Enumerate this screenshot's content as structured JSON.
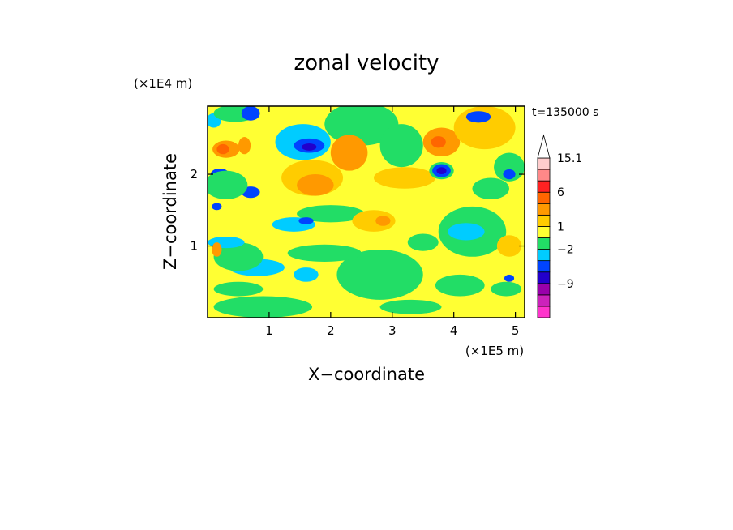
{
  "chart_data": {
    "type": "heatmap",
    "title": "zonal velocity",
    "time_label": "t=135000 s",
    "xlabel": "X−coordinate",
    "ylabel": "Z−coordinate",
    "x_multiplier": "(×1E5 m)",
    "y_multiplier": "(×1E4 m)",
    "xlim": [
      0,
      5.15
    ],
    "ylim": [
      0,
      2.95
    ],
    "x_ticks": [
      {
        "value": 1,
        "label": "1"
      },
      {
        "value": 2,
        "label": "2"
      },
      {
        "value": 3,
        "label": "3"
      },
      {
        "value": 4,
        "label": "4"
      },
      {
        "value": 5,
        "label": "5"
      }
    ],
    "y_ticks": [
      {
        "value": 1,
        "label": "1"
      },
      {
        "value": 2,
        "label": "2"
      }
    ],
    "colorbar": {
      "levels": [
        {
          "label": "",
          "color": "#ff33cc"
        },
        {
          "label": "",
          "color": "#cc22bb"
        },
        {
          "label": "−9",
          "color": "#9900aa"
        },
        {
          "label": "",
          "color": "#2200cc"
        },
        {
          "label": "",
          "color": "#0044ff"
        },
        {
          "label": "−2",
          "color": "#00ccff"
        },
        {
          "label": "",
          "color": "#22dd66"
        },
        {
          "label": "1",
          "color": "#ffff33"
        },
        {
          "label": "",
          "color": "#ffcc00"
        },
        {
          "label": "",
          "color": "#ff9900"
        },
        {
          "label": "6",
          "color": "#ff6600"
        },
        {
          "label": "",
          "color": "#ff2222"
        },
        {
          "label": "",
          "color": "#ff8888"
        },
        {
          "label": "15.1",
          "color": "#ffcccc"
        }
      ],
      "extend": "max"
    },
    "field": {
      "background_color": "#ffff33",
      "patches": [
        {
          "x": 0.1,
          "z": 2.75,
          "rx": 0.12,
          "rz": 0.1,
          "color": "#00ccff"
        },
        {
          "x": 0.45,
          "z": 2.85,
          "rx": 0.35,
          "rz": 0.12,
          "color": "#22dd66"
        },
        {
          "x": 0.7,
          "z": 2.85,
          "rx": 0.15,
          "rz": 0.1,
          "color": "#0044ff"
        },
        {
          "x": 0.3,
          "z": 2.35,
          "rx": 0.22,
          "rz": 0.12,
          "color": "#ff9900"
        },
        {
          "x": 0.25,
          "z": 2.35,
          "rx": 0.1,
          "rz": 0.07,
          "color": "#ff6600"
        },
        {
          "x": 0.6,
          "z": 2.4,
          "rx": 0.1,
          "rz": 0.12,
          "color": "#ff9900"
        },
        {
          "x": 0.2,
          "z": 2.0,
          "rx": 0.15,
          "rz": 0.08,
          "color": "#0044ff"
        },
        {
          "x": 0.7,
          "z": 1.75,
          "rx": 0.15,
          "rz": 0.08,
          "color": "#0044ff"
        },
        {
          "x": 0.15,
          "z": 1.55,
          "rx": 0.08,
          "rz": 0.05,
          "color": "#0044ff"
        },
        {
          "x": 0.3,
          "z": 1.85,
          "rx": 0.35,
          "rz": 0.2,
          "color": "#22dd66"
        },
        {
          "x": 1.55,
          "z": 2.45,
          "rx": 0.45,
          "rz": 0.25,
          "color": "#00ccff"
        },
        {
          "x": 1.65,
          "z": 2.4,
          "rx": 0.25,
          "rz": 0.1,
          "color": "#0044ff"
        },
        {
          "x": 1.65,
          "z": 2.38,
          "rx": 0.12,
          "rz": 0.05,
          "color": "#2200cc"
        },
        {
          "x": 1.7,
          "z": 1.95,
          "rx": 0.5,
          "rz": 0.25,
          "color": "#ffcc00"
        },
        {
          "x": 1.75,
          "z": 1.85,
          "rx": 0.3,
          "rz": 0.15,
          "color": "#ff9900"
        },
        {
          "x": 2.5,
          "z": 2.7,
          "rx": 0.6,
          "rz": 0.3,
          "color": "#22dd66"
        },
        {
          "x": 2.3,
          "z": 2.3,
          "rx": 0.3,
          "rz": 0.25,
          "color": "#ff9900"
        },
        {
          "x": 3.15,
          "z": 2.4,
          "rx": 0.35,
          "rz": 0.3,
          "color": "#22dd66"
        },
        {
          "x": 3.2,
          "z": 1.95,
          "rx": 0.5,
          "rz": 0.15,
          "color": "#ffcc00"
        },
        {
          "x": 3.8,
          "z": 2.45,
          "rx": 0.3,
          "rz": 0.2,
          "color": "#ff9900"
        },
        {
          "x": 3.75,
          "z": 2.45,
          "rx": 0.12,
          "rz": 0.08,
          "color": "#ff6600"
        },
        {
          "x": 3.8,
          "z": 2.05,
          "rx": 0.2,
          "rz": 0.12,
          "color": "#22dd66"
        },
        {
          "x": 3.8,
          "z": 2.05,
          "rx": 0.15,
          "rz": 0.09,
          "color": "#0044ff"
        },
        {
          "x": 3.8,
          "z": 2.05,
          "rx": 0.08,
          "rz": 0.05,
          "color": "#2200cc"
        },
        {
          "x": 4.5,
          "z": 2.65,
          "rx": 0.5,
          "rz": 0.3,
          "color": "#ffcc00"
        },
        {
          "x": 4.4,
          "z": 2.8,
          "rx": 0.2,
          "rz": 0.08,
          "color": "#0044ff"
        },
        {
          "x": 4.9,
          "z": 2.1,
          "rx": 0.25,
          "rz": 0.2,
          "color": "#22dd66"
        },
        {
          "x": 4.9,
          "z": 2.0,
          "rx": 0.1,
          "rz": 0.07,
          "color": "#0044ff"
        },
        {
          "x": 4.6,
          "z": 1.8,
          "rx": 0.3,
          "rz": 0.15,
          "color": "#22dd66"
        },
        {
          "x": 2.0,
          "z": 1.45,
          "rx": 0.55,
          "rz": 0.12,
          "color": "#22dd66"
        },
        {
          "x": 1.4,
          "z": 1.3,
          "rx": 0.35,
          "rz": 0.1,
          "color": "#00ccff"
        },
        {
          "x": 1.6,
          "z": 1.35,
          "rx": 0.12,
          "rz": 0.05,
          "color": "#0044ff"
        },
        {
          "x": 2.7,
          "z": 1.35,
          "rx": 0.35,
          "rz": 0.15,
          "color": "#ffcc00"
        },
        {
          "x": 2.85,
          "z": 1.35,
          "rx": 0.12,
          "rz": 0.07,
          "color": "#ff9900"
        },
        {
          "x": 2.8,
          "z": 0.6,
          "rx": 0.7,
          "rz": 0.35,
          "color": "#22dd66"
        },
        {
          "x": 1.9,
          "z": 0.9,
          "rx": 0.6,
          "rz": 0.12,
          "color": "#22dd66"
        },
        {
          "x": 1.6,
          "z": 0.6,
          "rx": 0.2,
          "rz": 0.1,
          "color": "#00ccff"
        },
        {
          "x": 0.8,
          "z": 0.7,
          "rx": 0.45,
          "rz": 0.12,
          "color": "#00ccff"
        },
        {
          "x": 0.5,
          "z": 0.85,
          "rx": 0.4,
          "rz": 0.2,
          "color": "#22dd66"
        },
        {
          "x": 0.3,
          "z": 1.05,
          "rx": 0.3,
          "rz": 0.08,
          "color": "#00ccff"
        },
        {
          "x": 0.15,
          "z": 0.95,
          "rx": 0.08,
          "rz": 0.1,
          "color": "#ff9900"
        },
        {
          "x": 0.5,
          "z": 0.4,
          "rx": 0.4,
          "rz": 0.1,
          "color": "#22dd66"
        },
        {
          "x": 0.9,
          "z": 0.15,
          "rx": 0.8,
          "rz": 0.15,
          "color": "#22dd66"
        },
        {
          "x": 3.3,
          "z": 0.15,
          "rx": 0.5,
          "rz": 0.1,
          "color": "#22dd66"
        },
        {
          "x": 4.3,
          "z": 1.2,
          "rx": 0.55,
          "rz": 0.35,
          "color": "#22dd66"
        },
        {
          "x": 4.2,
          "z": 1.2,
          "rx": 0.3,
          "rz": 0.12,
          "color": "#00ccff"
        },
        {
          "x": 4.9,
          "z": 1.0,
          "rx": 0.2,
          "rz": 0.15,
          "color": "#ffcc00"
        },
        {
          "x": 4.1,
          "z": 0.45,
          "rx": 0.4,
          "rz": 0.15,
          "color": "#22dd66"
        },
        {
          "x": 4.85,
          "z": 0.4,
          "rx": 0.25,
          "rz": 0.1,
          "color": "#22dd66"
        },
        {
          "x": 4.9,
          "z": 0.55,
          "rx": 0.08,
          "rz": 0.05,
          "color": "#0044ff"
        },
        {
          "x": 3.5,
          "z": 1.05,
          "rx": 0.25,
          "rz": 0.12,
          "color": "#22dd66"
        }
      ]
    }
  }
}
